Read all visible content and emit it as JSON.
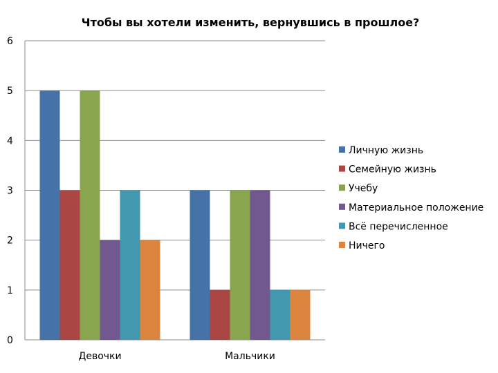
{
  "chart_data": {
    "type": "bar",
    "title": "Чтобы вы хотели изменить, вернувшись в прошлое?",
    "xlabel": "",
    "ylabel": "",
    "ylim": [
      0,
      6
    ],
    "yticks": [
      "0",
      "1",
      "2",
      "3",
      "4",
      "5",
      "6"
    ],
    "grid": true,
    "legend_position": "right",
    "categories": [
      "Девочки",
      "Мальчики"
    ],
    "series": [
      {
        "name": "Личную жизнь",
        "color": "#4572A7",
        "values": [
          5,
          3
        ]
      },
      {
        "name": "Семейную жизнь",
        "color": "#AA4643",
        "values": [
          3,
          1
        ]
      },
      {
        "name": "Учебу",
        "color": "#89A54E",
        "values": [
          5,
          3
        ]
      },
      {
        "name": "Материальное положение",
        "color": "#71588F",
        "values": [
          2,
          3
        ]
      },
      {
        "name": "Всё перечисленное",
        "color": "#4198AF",
        "values": [
          3,
          1
        ]
      },
      {
        "name": "Ничего",
        "color": "#DB843D",
        "values": [
          2,
          1
        ]
      }
    ]
  }
}
